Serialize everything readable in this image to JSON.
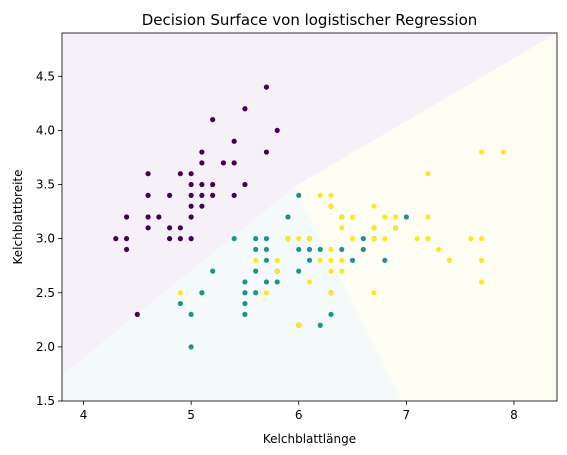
{
  "chart_data": {
    "type": "scatter",
    "title": "Decision Surface von logistischer Regression",
    "xlabel": "Kelchblattlänge",
    "ylabel": "Kelchblattbreite",
    "xlim": [
      3.8,
      8.4
    ],
    "ylim": [
      1.5,
      4.9
    ],
    "xticks": [
      "4",
      "5",
      "6",
      "7",
      "8"
    ],
    "yticks": [
      "1.5",
      "2.0",
      "2.5",
      "3.0",
      "3.5",
      "4.0",
      "4.5"
    ],
    "grid": false,
    "regions": [
      {
        "class": 0,
        "color": "#f6f1f8",
        "polygon": [
          [
            3.8,
            4.9
          ],
          [
            8.4,
            4.9
          ],
          [
            3.8,
            1.74
          ]
        ]
      },
      {
        "class": 1,
        "color": "#f4f9fa",
        "polygon": [
          [
            3.8,
            1.74
          ],
          [
            5.96,
            3.48
          ],
          [
            6.96,
            1.5
          ],
          [
            3.8,
            1.5
          ]
        ]
      },
      {
        "class": 2,
        "color": "#fefdf3",
        "polygon": [
          [
            5.96,
            3.48
          ],
          [
            8.4,
            4.9
          ],
          [
            8.4,
            1.5
          ],
          [
            6.96,
            1.5
          ]
        ]
      }
    ],
    "series": [
      {
        "color": "#440154",
        "points": [
          [
            4.3,
            3.0
          ],
          [
            4.4,
            2.9
          ],
          [
            4.4,
            3.0
          ],
          [
            4.4,
            3.2
          ],
          [
            4.5,
            2.3
          ],
          [
            4.6,
            3.1
          ],
          [
            4.6,
            3.2
          ],
          [
            4.6,
            3.4
          ],
          [
            4.6,
            3.6
          ],
          [
            4.7,
            3.2
          ],
          [
            4.8,
            3.0
          ],
          [
            4.8,
            3.1
          ],
          [
            4.8,
            3.4
          ],
          [
            4.9,
            3.0
          ],
          [
            4.9,
            3.1
          ],
          [
            4.9,
            3.6
          ],
          [
            5.0,
            3.0
          ],
          [
            5.0,
            3.2
          ],
          [
            5.0,
            3.3
          ],
          [
            5.0,
            3.4
          ],
          [
            5.0,
            3.5
          ],
          [
            5.0,
            3.6
          ],
          [
            5.1,
            3.3
          ],
          [
            5.1,
            3.4
          ],
          [
            5.1,
            3.5
          ],
          [
            5.1,
            3.7
          ],
          [
            5.1,
            3.8
          ],
          [
            5.2,
            3.4
          ],
          [
            5.2,
            3.5
          ],
          [
            5.2,
            4.1
          ],
          [
            5.3,
            3.7
          ],
          [
            5.4,
            3.4
          ],
          [
            5.4,
            3.7
          ],
          [
            5.4,
            3.9
          ],
          [
            5.5,
            3.5
          ],
          [
            5.5,
            4.2
          ],
          [
            5.7,
            3.8
          ],
          [
            5.7,
            4.4
          ],
          [
            5.8,
            4.0
          ]
        ]
      },
      {
        "color": "#21918c",
        "points": [
          [
            4.9,
            2.4
          ],
          [
            5.0,
            2.0
          ],
          [
            5.0,
            2.3
          ],
          [
            5.1,
            2.5
          ],
          [
            5.2,
            2.7
          ],
          [
            5.4,
            3.0
          ],
          [
            5.5,
            2.3
          ],
          [
            5.5,
            2.4
          ],
          [
            5.5,
            2.5
          ],
          [
            5.5,
            2.6
          ],
          [
            5.6,
            2.5
          ],
          [
            5.6,
            2.7
          ],
          [
            5.6,
            2.9
          ],
          [
            5.6,
            3.0
          ],
          [
            5.7,
            2.6
          ],
          [
            5.7,
            2.8
          ],
          [
            5.7,
            2.9
          ],
          [
            5.7,
            3.0
          ],
          [
            5.8,
            2.6
          ],
          [
            5.8,
            2.7
          ],
          [
            5.9,
            3.0
          ],
          [
            5.9,
            3.2
          ],
          [
            6.0,
            2.2
          ],
          [
            6.0,
            2.7
          ],
          [
            6.0,
            2.9
          ],
          [
            6.0,
            3.4
          ],
          [
            6.1,
            2.8
          ],
          [
            6.1,
            2.9
          ],
          [
            6.1,
            3.0
          ],
          [
            6.2,
            2.2
          ],
          [
            6.2,
            2.9
          ],
          [
            6.3,
            2.3
          ],
          [
            6.3,
            2.5
          ],
          [
            6.3,
            3.3
          ],
          [
            6.4,
            2.9
          ],
          [
            6.4,
            3.2
          ],
          [
            6.5,
            2.8
          ],
          [
            6.6,
            2.9
          ],
          [
            6.6,
            3.0
          ],
          [
            6.7,
            3.0
          ],
          [
            6.7,
            3.1
          ],
          [
            6.8,
            2.8
          ],
          [
            6.9,
            3.1
          ],
          [
            7.0,
            3.2
          ]
        ]
      },
      {
        "color": "#fde725",
        "points": [
          [
            4.9,
            2.5
          ],
          [
            5.6,
            2.8
          ],
          [
            5.7,
            2.5
          ],
          [
            5.8,
            2.7
          ],
          [
            5.8,
            2.8
          ],
          [
            5.9,
            3.0
          ],
          [
            6.0,
            2.2
          ],
          [
            6.0,
            3.0
          ],
          [
            6.1,
            2.6
          ],
          [
            6.1,
            3.0
          ],
          [
            6.2,
            2.8
          ],
          [
            6.2,
            3.4
          ],
          [
            6.3,
            2.5
          ],
          [
            6.3,
            2.7
          ],
          [
            6.3,
            2.8
          ],
          [
            6.3,
            2.9
          ],
          [
            6.3,
            3.3
          ],
          [
            6.3,
            3.4
          ],
          [
            6.4,
            2.7
          ],
          [
            6.4,
            2.8
          ],
          [
            6.4,
            3.1
          ],
          [
            6.4,
            3.2
          ],
          [
            6.5,
            3.0
          ],
          [
            6.5,
            3.2
          ],
          [
            6.7,
            2.5
          ],
          [
            6.7,
            3.0
          ],
          [
            6.7,
            3.1
          ],
          [
            6.7,
            3.3
          ],
          [
            6.8,
            3.0
          ],
          [
            6.8,
            3.2
          ],
          [
            6.9,
            3.1
          ],
          [
            6.9,
            3.2
          ],
          [
            7.1,
            3.0
          ],
          [
            7.2,
            3.0
          ],
          [
            7.2,
            3.2
          ],
          [
            7.2,
            3.6
          ],
          [
            7.3,
            2.9
          ],
          [
            7.4,
            2.8
          ],
          [
            7.6,
            3.0
          ],
          [
            7.7,
            2.6
          ],
          [
            7.7,
            2.8
          ],
          [
            7.7,
            3.0
          ],
          [
            7.7,
            3.8
          ],
          [
            7.9,
            3.8
          ]
        ]
      }
    ]
  }
}
